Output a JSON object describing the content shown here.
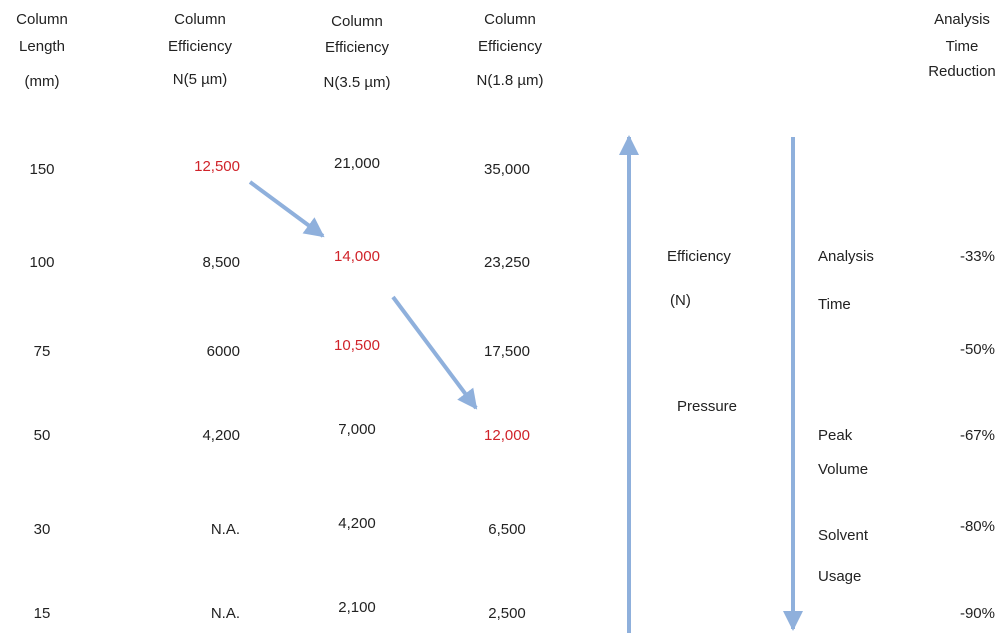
{
  "headers": [
    [
      "Column",
      "Length",
      "(mm)"
    ],
    [
      "Column",
      "Efficiency",
      "N(5 µm)"
    ],
    [
      "Column",
      "Efficiency",
      "N(3.5 µm)"
    ],
    [
      "Column",
      "Efficiency",
      "N(1.8 µm)"
    ],
    [
      "Analysis",
      "Time",
      "Reduction"
    ]
  ],
  "rows": [
    [
      "150",
      "12,500",
      "21,000",
      "35,000"
    ],
    [
      "100",
      "8,500",
      "14,000",
      "23,250"
    ],
    [
      "75",
      "6000",
      "10,500",
      "17,500"
    ],
    [
      "50",
      "4,200",
      "7,000",
      "12,000"
    ],
    [
      "30",
      "N.A.",
      "4,200",
      "6,500"
    ],
    [
      "15",
      "N.A.",
      "2,100",
      "2,500"
    ]
  ],
  "efficiency_labels": [
    "Efficiency",
    "(N)",
    "Pressure"
  ],
  "reduction_labels": [
    "Analysis",
    "Time",
    "Peak",
    "Volume",
    "Solvent",
    "Usage"
  ],
  "reductions": [
    "-33%",
    "-50%",
    "-67%",
    "-80%",
    "-90%"
  ]
}
